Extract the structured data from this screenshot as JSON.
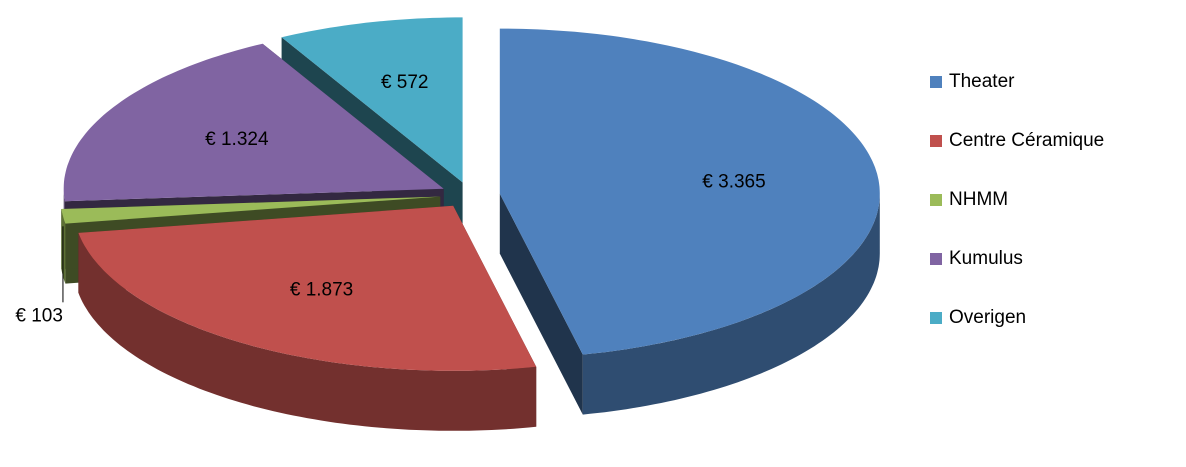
{
  "chart_data": {
    "type": "pie3d",
    "categories": [
      "Theater",
      "Centre Céramique",
      "NHMM",
      "Kumulus",
      "Overigen"
    ],
    "values": [
      3365,
      1873,
      103,
      1324,
      572
    ],
    "value_labels": [
      "€ 3.365",
      "€ 1.873",
      "€ 103",
      "€ 1.324",
      "€ 572"
    ],
    "colors": [
      "#4f81bd",
      "#c0504d",
      "#9bbb59",
      "#8064a2",
      "#4bacc6"
    ],
    "legend": "right"
  }
}
